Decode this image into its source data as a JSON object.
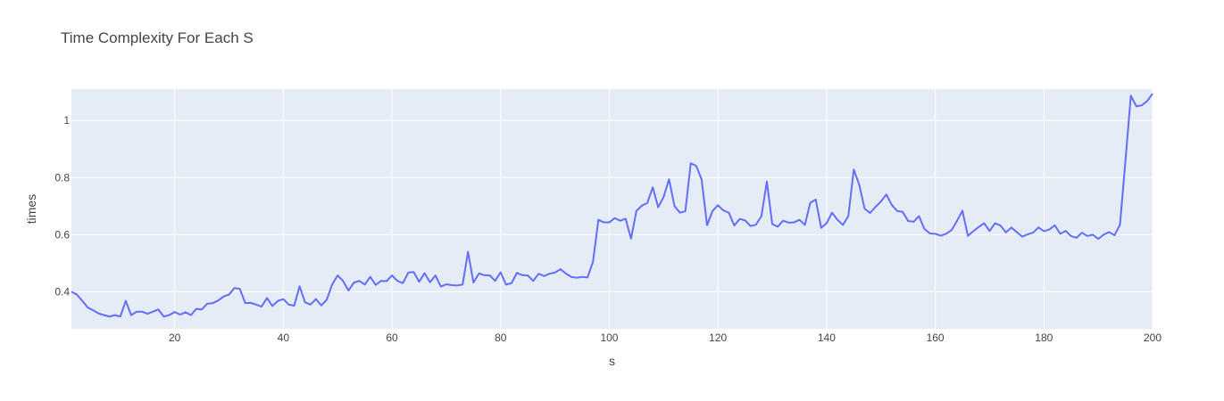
{
  "chart_data": {
    "type": "line",
    "title": "Time Complexity For Each S",
    "xlabel": "s",
    "ylabel": "times",
    "xlim": [
      1,
      200
    ],
    "ylim": [
      0.27,
      1.11
    ],
    "xticks": [
      20,
      40,
      60,
      80,
      100,
      120,
      140,
      160,
      180,
      200
    ],
    "yticks": [
      0.4,
      0.6,
      0.8,
      1
    ],
    "ytick_labels": [
      "0.4",
      "0.6",
      "0.8",
      "1"
    ],
    "grid": true,
    "legend": "none",
    "colors": {
      "line": "#636efa",
      "plot_bg": "#e5ecf6",
      "grid": "#ffffff",
      "text": "#444444"
    },
    "series": [
      {
        "x": [
          1,
          2,
          3,
          4,
          5,
          6,
          7,
          8,
          9,
          10,
          11,
          12,
          13,
          14,
          15,
          16,
          17,
          18,
          19,
          20,
          21,
          22,
          23,
          24,
          25,
          26,
          27,
          28,
          29,
          30,
          31,
          32,
          33,
          34,
          35,
          36,
          37,
          38,
          39,
          40,
          41,
          42,
          43,
          44,
          45,
          46,
          47,
          48,
          49,
          50,
          51,
          52,
          53,
          54,
          55,
          56,
          57,
          58,
          59,
          60,
          61,
          62,
          63,
          64,
          65,
          66,
          67,
          68,
          69,
          70,
          71,
          72,
          73,
          74,
          75,
          76,
          77,
          78,
          79,
          80,
          81,
          82,
          83,
          84,
          85,
          86,
          87,
          88,
          89,
          90,
          91,
          92,
          93,
          94,
          95,
          96,
          97,
          98,
          99,
          100,
          101,
          102,
          103,
          104,
          105,
          106,
          107,
          108,
          109,
          110,
          111,
          112,
          113,
          114,
          115,
          116,
          117,
          118,
          119,
          120,
          121,
          122,
          123,
          124,
          125,
          126,
          127,
          128,
          129,
          130,
          131,
          132,
          133,
          134,
          135,
          136,
          137,
          138,
          139,
          140,
          141,
          142,
          143,
          144,
          145,
          146,
          147,
          148,
          149,
          150,
          151,
          152,
          153,
          154,
          155,
          156,
          157,
          158,
          159,
          160,
          161,
          162,
          163,
          164,
          165,
          166,
          167,
          168,
          169,
          170,
          171,
          172,
          173,
          174,
          175,
          176,
          177,
          178,
          179,
          180,
          181,
          182,
          183,
          184,
          185,
          186,
          187,
          188,
          189,
          190,
          191,
          192,
          193,
          194,
          195,
          196,
          197,
          198,
          199,
          200
        ],
        "y": [
          0.4,
          0.39,
          0.368,
          0.345,
          0.335,
          0.324,
          0.318,
          0.313,
          0.318,
          0.313,
          0.368,
          0.318,
          0.33,
          0.33,
          0.323,
          0.33,
          0.338,
          0.313,
          0.318,
          0.329,
          0.32,
          0.328,
          0.318,
          0.34,
          0.338,
          0.358,
          0.36,
          0.369,
          0.383,
          0.39,
          0.413,
          0.41,
          0.36,
          0.361,
          0.355,
          0.348,
          0.378,
          0.35,
          0.368,
          0.374,
          0.355,
          0.351,
          0.419,
          0.363,
          0.355,
          0.374,
          0.352,
          0.372,
          0.426,
          0.457,
          0.438,
          0.404,
          0.432,
          0.438,
          0.425,
          0.452,
          0.424,
          0.438,
          0.437,
          0.457,
          0.438,
          0.43,
          0.467,
          0.469,
          0.435,
          0.465,
          0.433,
          0.457,
          0.418,
          0.426,
          0.423,
          0.422,
          0.425,
          0.54,
          0.432,
          0.464,
          0.458,
          0.457,
          0.438,
          0.468,
          0.425,
          0.43,
          0.466,
          0.458,
          0.457,
          0.438,
          0.463,
          0.455,
          0.463,
          0.467,
          0.479,
          0.464,
          0.452,
          0.449,
          0.452,
          0.45,
          0.505,
          0.652,
          0.643,
          0.643,
          0.658,
          0.649,
          0.656,
          0.586,
          0.683,
          0.702,
          0.711,
          0.766,
          0.696,
          0.732,
          0.794,
          0.7,
          0.677,
          0.682,
          0.85,
          0.841,
          0.793,
          0.633,
          0.683,
          0.703,
          0.685,
          0.677,
          0.632,
          0.655,
          0.65,
          0.63,
          0.635,
          0.665,
          0.786,
          0.637,
          0.628,
          0.649,
          0.642,
          0.643,
          0.652,
          0.634,
          0.712,
          0.723,
          0.624,
          0.64,
          0.677,
          0.652,
          0.634,
          0.665,
          0.828,
          0.775,
          0.691,
          0.676,
          0.697,
          0.716,
          0.741,
          0.704,
          0.683,
          0.68,
          0.648,
          0.645,
          0.665,
          0.62,
          0.604,
          0.603,
          0.596,
          0.603,
          0.616,
          0.648,
          0.684,
          0.596,
          0.612,
          0.627,
          0.64,
          0.613,
          0.64,
          0.632,
          0.608,
          0.625,
          0.609,
          0.593,
          0.601,
          0.607,
          0.625,
          0.612,
          0.618,
          0.633,
          0.603,
          0.613,
          0.595,
          0.589,
          0.607,
          0.595,
          0.6,
          0.585,
          0.6,
          0.609,
          0.598,
          0.635,
          0.857,
          1.087,
          1.05,
          1.053,
          1.068,
          1.094
        ]
      }
    ]
  }
}
